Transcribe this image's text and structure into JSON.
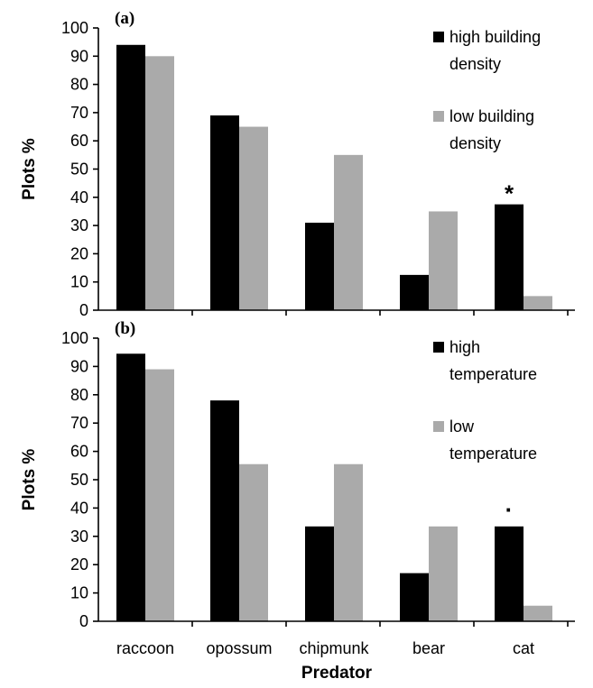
{
  "chart_data": [
    {
      "type": "bar",
      "panel_label": "(a)",
      "categories": [
        "raccoon",
        "opossum",
        "chipmunk",
        "bear",
        "cat"
      ],
      "series": [
        {
          "name_lines": [
            "high building",
            "density"
          ],
          "color": "#000000",
          "values": [
            94,
            69,
            31,
            12.5,
            37.5
          ]
        },
        {
          "name_lines": [
            "low building",
            "density"
          ],
          "color": "#aaaaaa",
          "values": [
            90,
            65,
            55,
            35,
            5
          ]
        }
      ],
      "ylabel": "Plots %",
      "ylim": [
        0,
        100
      ],
      "yticks": [
        "0",
        "10",
        "20",
        "30",
        "40",
        "50",
        "60",
        "70",
        "80",
        "90",
        "100"
      ],
      "annotation": {
        "text": "*",
        "category": "cat"
      },
      "legend_position": "top-right"
    },
    {
      "type": "bar",
      "panel_label": "(b)",
      "categories": [
        "raccoon",
        "opossum",
        "chipmunk",
        "bear",
        "cat"
      ],
      "series": [
        {
          "name_lines": [
            "high",
            "temperature"
          ],
          "color": "#000000",
          "values": [
            94.5,
            78,
            33.5,
            17,
            33.5
          ]
        },
        {
          "name_lines": [
            "low",
            "temperature"
          ],
          "color": "#aaaaaa",
          "values": [
            89,
            55.5,
            55.5,
            33.5,
            5.5
          ]
        }
      ],
      "ylabel": "Plots %",
      "xlabel": "Predator",
      "ylim": [
        0,
        100
      ],
      "yticks": [
        "0",
        "10",
        "20",
        "30",
        "40",
        "50",
        "60",
        "70",
        "80",
        "90",
        "100"
      ],
      "annotation": {
        "text": "·",
        "category": "cat"
      },
      "legend_position": "top-right"
    }
  ]
}
